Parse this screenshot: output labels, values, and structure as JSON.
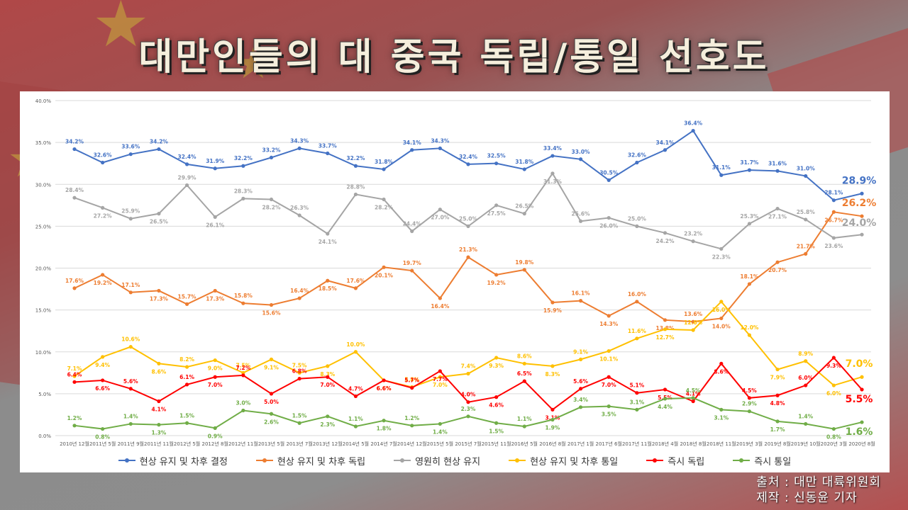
{
  "title": "대만인들의 대 중국 독립/통일 선호도",
  "credit": {
    "source": "출처 : 대만 대륙위원회",
    "author": "제작 : 신동윤 기자"
  },
  "chart_data": {
    "type": "line",
    "ylim": [
      0,
      40
    ],
    "y_ticks": [
      "0.0%",
      "5.0%",
      "10.0%",
      "15.0%",
      "20.0%",
      "25.0%",
      "30.0%",
      "35.0%",
      "40.0%"
    ],
    "grid": true,
    "legend_position": "bottom",
    "categories": [
      "2010년 12월",
      "2011년 5월",
      "2011년 9월",
      "2011년 11월",
      "2012년 5월",
      "2012년 8월",
      "2012년 11월",
      "2013년 5월",
      "2013년 7월",
      "2013년 12월",
      "2014년 5월",
      "2014년 7월",
      "2014년 12월",
      "2015년 5월",
      "2015년 7월",
      "2015년 11월",
      "2016년 5월",
      "2016년 8월",
      "2017년 1월",
      "2017년 6월",
      "2017년 11월",
      "2018년 4월",
      "2018년 8월",
      "2018년 11월",
      "2019년 3월",
      "2019년 8월",
      "2019년 10월",
      "2020년 3월",
      "2020년 8월"
    ],
    "series": [
      {
        "name": "현상 유지 및 차후 결정",
        "color": "#4472C4",
        "values": [
          34.2,
          32.6,
          33.6,
          34.2,
          32.4,
          31.9,
          32.2,
          33.2,
          34.3,
          33.7,
          32.2,
          31.8,
          34.1,
          34.3,
          32.4,
          32.5,
          31.8,
          33.4,
          33.0,
          30.5,
          32.6,
          34.1,
          36.4,
          31.1,
          31.7,
          31.6,
          31.0,
          28.1,
          28.9
        ]
      },
      {
        "name": "현상 유지 및 차후 독립",
        "color": "#ED7D31",
        "values": [
          17.6,
          19.2,
          17.1,
          17.3,
          15.7,
          17.3,
          15.8,
          15.6,
          16.4,
          18.5,
          17.6,
          20.1,
          19.7,
          16.4,
          21.3,
          19.2,
          19.8,
          15.9,
          16.1,
          14.3,
          16.0,
          13.8,
          13.6,
          14.0,
          18.1,
          20.7,
          21.7,
          26.7,
          26.2
        ]
      },
      {
        "name": "영원히 현상 유지",
        "color": "#A5A5A5",
        "values": [
          28.4,
          27.2,
          25.9,
          26.5,
          29.9,
          26.1,
          28.3,
          28.2,
          26.3,
          24.1,
          28.8,
          28.2,
          24.4,
          27.0,
          25.0,
          27.5,
          26.5,
          31.3,
          25.6,
          26.0,
          25.0,
          24.2,
          23.2,
          22.3,
          25.3,
          27.1,
          25.8,
          23.6,
          24.0
        ]
      },
      {
        "name": "현상 유지 및 차후 통일",
        "color": "#FFC000",
        "values": [
          7.1,
          9.4,
          10.6,
          8.6,
          8.2,
          9.0,
          7.5,
          9.1,
          7.5,
          8.3,
          10.0,
          6.6,
          5.8,
          7.0,
          7.4,
          9.3,
          8.6,
          8.3,
          9.1,
          10.1,
          11.6,
          12.7,
          12.6,
          16.0,
          12.0,
          7.9,
          8.9,
          6.0,
          7.0
        ]
      },
      {
        "name": "즉시 독립",
        "color": "#FF0000",
        "values": [
          6.4,
          6.6,
          5.6,
          4.1,
          6.1,
          7.0,
          7.2,
          5.0,
          6.8,
          7.0,
          4.7,
          6.6,
          5.7,
          7.7,
          4.0,
          4.6,
          6.5,
          3.1,
          5.6,
          7.0,
          5.1,
          5.5,
          4.1,
          8.6,
          4.5,
          4.8,
          6.0,
          9.3,
          5.5
        ]
      },
      {
        "name": "즉시 통일",
        "color": "#70AD47",
        "values": [
          1.2,
          0.8,
          1.4,
          1.3,
          1.5,
          0.9,
          3.0,
          2.6,
          1.5,
          2.3,
          1.1,
          1.8,
          1.2,
          1.4,
          2.3,
          1.5,
          1.1,
          1.9,
          3.4,
          3.5,
          3.1,
          4.4,
          4.5,
          3.1,
          2.9,
          1.7,
          1.4,
          0.8,
          1.6
        ]
      }
    ],
    "final_labels": [
      "28.9%",
      "26.2%",
      "24.0%",
      "7.0%",
      "5.5%",
      "1.6%"
    ]
  }
}
